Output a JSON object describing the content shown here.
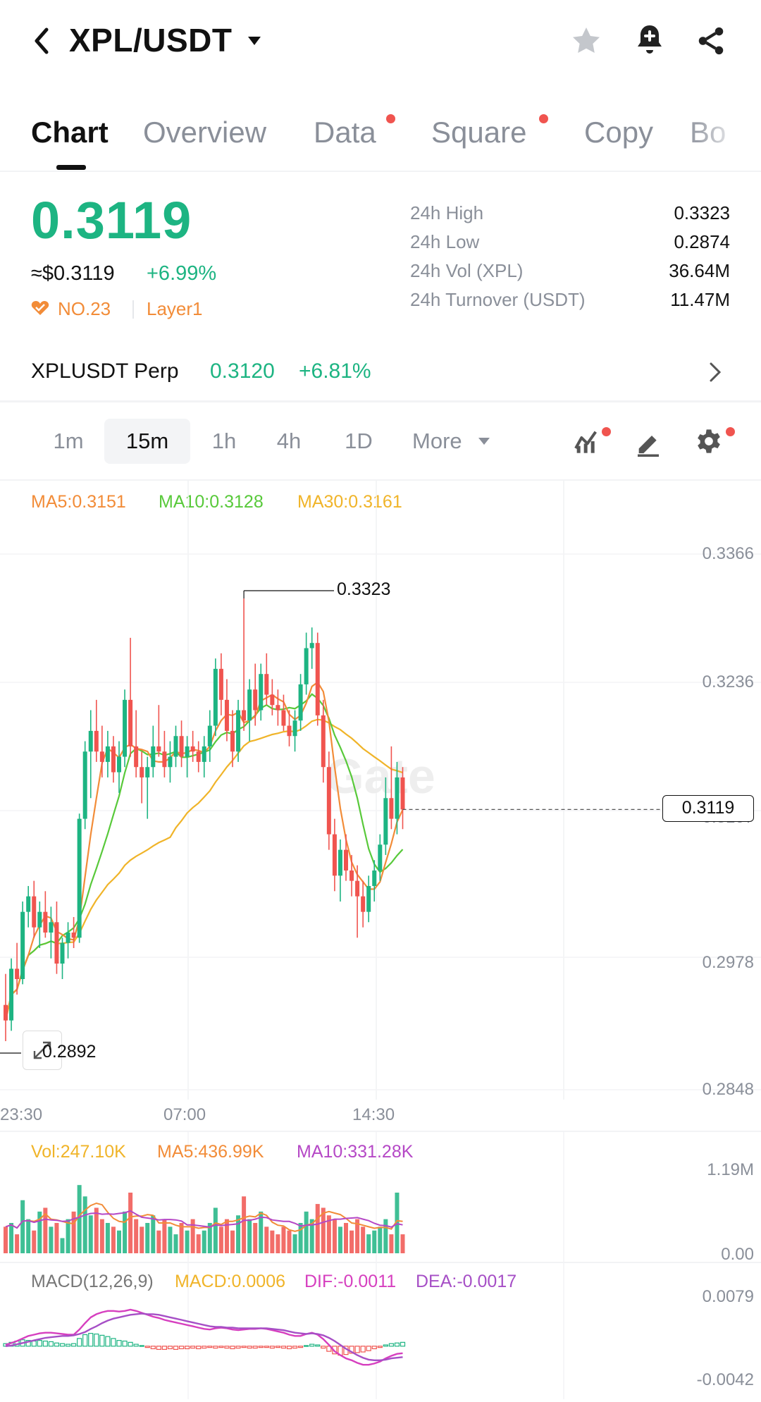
{
  "header": {
    "pair": "XPL/USDT",
    "icons": [
      "back-icon",
      "caret-down-icon",
      "star-icon",
      "bell-plus-icon",
      "share-icon"
    ]
  },
  "tabs": [
    {
      "label": "Chart",
      "active": true,
      "dot": false
    },
    {
      "label": "Overview",
      "active": false,
      "dot": false
    },
    {
      "label": "Data",
      "active": false,
      "dot": true
    },
    {
      "label": "Square",
      "active": false,
      "dot": true
    },
    {
      "label": "Copy",
      "active": false,
      "dot": false
    },
    {
      "label": "Bo",
      "active": false,
      "dot": false
    }
  ],
  "price": {
    "last": "0.3119",
    "usd": "≈$0.3119",
    "change": "+6.99%",
    "rank": "NO.23",
    "category": "Layer1"
  },
  "stats": [
    {
      "label": "24h High",
      "value": "0.3323"
    },
    {
      "label": "24h Low",
      "value": "0.2874"
    },
    {
      "label": "24h Vol (XPL)",
      "value": "36.64M"
    },
    {
      "label": "24h Turnover (USDT)",
      "value": "11.47M"
    }
  ],
  "perp": {
    "name": "XPLUSDT Perp",
    "price": "0.3120",
    "change": "+6.81%"
  },
  "intervals": {
    "items": [
      "1m",
      "15m",
      "1h",
      "4h",
      "1D"
    ],
    "selected": "15m",
    "more": "More"
  },
  "colors": {
    "up": "#1db482",
    "down": "#f0544f",
    "ma5": "#f28c38",
    "ma10": "#58c93a",
    "ma30": "#f0b429",
    "vol_ma10": "#b548c6",
    "macd_label": "#f0b429",
    "dif": "#d63fbf",
    "dea": "#a64fc6"
  },
  "main_chart": {
    "legend": {
      "ma5": "MA5:0.3151",
      "ma10": "MA10:0.3128",
      "ma30": "MA30:0.3161"
    },
    "y_ticks": [
      "0.3366",
      "0.3236",
      "0.3107",
      "0.2978",
      "0.2848"
    ],
    "x_ticks": [
      "23:30",
      "07:00",
      "14:30"
    ],
    "high_label": "0.3323",
    "low_label": "0.2892",
    "last_label": "0.3119",
    "watermark": "Gate"
  },
  "volume": {
    "legend": {
      "vol": "Vol:247.10K",
      "ma5": "MA5:436.99K",
      "ma10": "MA10:331.28K"
    },
    "y_ticks": [
      "1.19M",
      "0.00"
    ]
  },
  "macd": {
    "legend": {
      "name": "MACD(12,26,9)",
      "macd": "MACD:0.0006",
      "dif": "DIF:-0.0011",
      "dea": "DEA:-0.0017"
    },
    "y_ticks": [
      "0.0079",
      "-0.0042"
    ]
  },
  "chart_data": {
    "type": "candlestick",
    "interval": "15m",
    "ylim": [
      0.2848,
      0.3366
    ],
    "candles": [
      [
        0.293,
        0.296,
        0.2895,
        0.2915
      ],
      [
        0.2915,
        0.2975,
        0.2905,
        0.2965
      ],
      [
        0.2965,
        0.299,
        0.294,
        0.2955
      ],
      [
        0.2955,
        0.303,
        0.295,
        0.302
      ],
      [
        0.302,
        0.3045,
        0.3005,
        0.3035
      ],
      [
        0.3035,
        0.305,
        0.2995,
        0.3005
      ],
      [
        0.3005,
        0.303,
        0.2985,
        0.302
      ],
      [
        0.302,
        0.304,
        0.2995,
        0.3
      ],
      [
        0.3,
        0.3025,
        0.2975,
        0.301
      ],
      [
        0.301,
        0.303,
        0.296,
        0.297
      ],
      [
        0.297,
        0.2995,
        0.2955,
        0.299
      ],
      [
        0.299,
        0.301,
        0.2975,
        0.3
      ],
      [
        0.3,
        0.3015,
        0.2985,
        0.2995
      ],
      [
        0.2995,
        0.3115,
        0.299,
        0.311
      ],
      [
        0.311,
        0.3185,
        0.31,
        0.3175
      ],
      [
        0.3175,
        0.3215,
        0.313,
        0.3195
      ],
      [
        0.3195,
        0.3225,
        0.3165,
        0.3175
      ],
      [
        0.3175,
        0.32,
        0.315,
        0.3165
      ],
      [
        0.3165,
        0.3195,
        0.315,
        0.318
      ],
      [
        0.318,
        0.319,
        0.3145,
        0.3155
      ],
      [
        0.3155,
        0.3185,
        0.3135,
        0.317
      ],
      [
        0.317,
        0.3235,
        0.316,
        0.3225
      ],
      [
        0.3225,
        0.3285,
        0.317,
        0.318
      ],
      [
        0.318,
        0.3215,
        0.315,
        0.316
      ],
      [
        0.316,
        0.3175,
        0.3125,
        0.315
      ],
      [
        0.315,
        0.317,
        0.311,
        0.316
      ],
      [
        0.316,
        0.32,
        0.315,
        0.318
      ],
      [
        0.318,
        0.322,
        0.317,
        0.3175
      ],
      [
        0.3175,
        0.3195,
        0.315,
        0.316
      ],
      [
        0.316,
        0.3185,
        0.3145,
        0.317
      ],
      [
        0.317,
        0.32,
        0.316,
        0.319
      ],
      [
        0.319,
        0.3205,
        0.316,
        0.317
      ],
      [
        0.317,
        0.319,
        0.315,
        0.318
      ],
      [
        0.318,
        0.3195,
        0.3165,
        0.3175
      ],
      [
        0.3175,
        0.3185,
        0.3155,
        0.3165
      ],
      [
        0.3165,
        0.319,
        0.315,
        0.318
      ],
      [
        0.318,
        0.3215,
        0.3165,
        0.32
      ],
      [
        0.32,
        0.3265,
        0.319,
        0.3255
      ],
      [
        0.3255,
        0.327,
        0.321,
        0.3225
      ],
      [
        0.3225,
        0.3245,
        0.3185,
        0.3195
      ],
      [
        0.3195,
        0.3215,
        0.316,
        0.3175
      ],
      [
        0.3175,
        0.3225,
        0.3165,
        0.3215
      ],
      [
        0.3215,
        0.3323,
        0.3195,
        0.3205
      ],
      [
        0.3205,
        0.3245,
        0.3185,
        0.3235
      ],
      [
        0.3235,
        0.326,
        0.32,
        0.3215
      ],
      [
        0.3215,
        0.326,
        0.3205,
        0.325
      ],
      [
        0.325,
        0.327,
        0.322,
        0.323
      ],
      [
        0.323,
        0.3245,
        0.321,
        0.322
      ],
      [
        0.322,
        0.3235,
        0.32,
        0.3215
      ],
      [
        0.3215,
        0.323,
        0.3195,
        0.32
      ],
      [
        0.32,
        0.3215,
        0.318,
        0.319
      ],
      [
        0.319,
        0.3215,
        0.3175,
        0.3205
      ],
      [
        0.3205,
        0.325,
        0.3195,
        0.324
      ],
      [
        0.324,
        0.329,
        0.323,
        0.3275
      ],
      [
        0.3275,
        0.3295,
        0.3255,
        0.328
      ],
      [
        0.328,
        0.329,
        0.32,
        0.321
      ],
      [
        0.321,
        0.3225,
        0.3145,
        0.316
      ],
      [
        0.316,
        0.3175,
        0.308,
        0.3095
      ],
      [
        0.3095,
        0.311,
        0.304,
        0.3055
      ],
      [
        0.3055,
        0.309,
        0.303,
        0.308
      ],
      [
        0.308,
        0.3095,
        0.305,
        0.306
      ],
      [
        0.306,
        0.3075,
        0.3035,
        0.305
      ],
      [
        0.305,
        0.3065,
        0.2995,
        0.3035
      ],
      [
        0.3035,
        0.305,
        0.3005,
        0.302
      ],
      [
        0.302,
        0.3055,
        0.301,
        0.3045
      ],
      [
        0.3045,
        0.307,
        0.303,
        0.306
      ],
      [
        0.306,
        0.3095,
        0.305,
        0.3085
      ],
      [
        0.3085,
        0.315,
        0.3075,
        0.313
      ],
      [
        0.313,
        0.318,
        0.31,
        0.311
      ],
      [
        0.311,
        0.3165,
        0.3095,
        0.315
      ],
      [
        0.315,
        0.316,
        0.31,
        0.3119
      ]
    ],
    "volume_ylim": [
      0,
      1.19
    ],
    "volume_m": [
      0.35,
      0.4,
      0.25,
      0.7,
      0.45,
      0.3,
      0.55,
      0.6,
      0.35,
      0.4,
      0.2,
      0.45,
      0.55,
      0.9,
      0.75,
      0.5,
      0.6,
      0.45,
      0.4,
      0.35,
      0.3,
      0.55,
      0.8,
      0.45,
      0.35,
      0.4,
      0.5,
      0.3,
      0.45,
      0.35,
      0.25,
      0.4,
      0.3,
      0.45,
      0.25,
      0.3,
      0.4,
      0.6,
      0.35,
      0.45,
      0.3,
      0.5,
      0.75,
      0.45,
      0.4,
      0.55,
      0.35,
      0.3,
      0.25,
      0.35,
      0.3,
      0.25,
      0.4,
      0.55,
      0.45,
      0.65,
      0.6,
      0.5,
      0.45,
      0.35,
      0.4,
      0.3,
      0.45,
      0.35,
      0.25,
      0.3,
      0.35,
      0.45,
      0.25,
      0.8,
      0.25
    ],
    "macd_ylim": [
      -0.0042,
      0.0079
    ],
    "macd_hist": [
      0.0004,
      0.0006,
      0.0008,
      0.001,
      0.0009,
      0.0008,
      0.0009,
      0.0008,
      0.0007,
      0.0005,
      0.0004,
      0.0003,
      0.0004,
      0.0012,
      0.0018,
      0.002,
      0.0019,
      0.0017,
      0.0015,
      0.0012,
      0.0009,
      0.0008,
      0.0006,
      0.0003,
      0.0001,
      -0.0002,
      -0.0004,
      -0.0005,
      -0.0005,
      -0.0004,
      -0.0005,
      -0.0004,
      -0.0004,
      -0.0003,
      -0.0004,
      -0.0003,
      -0.0002,
      -0.0003,
      -0.0002,
      -0.0003,
      -0.0004,
      -0.0003,
      -0.0002,
      -0.0003,
      -0.0003,
      -0.0002,
      -0.0002,
      -0.0003,
      -0.0002,
      -0.0003,
      -0.0004,
      -0.0003,
      -0.0002,
      0.0001,
      0.0003,
      0.0002,
      -0.0003,
      -0.0008,
      -0.0012,
      -0.0014,
      -0.0013,
      -0.0011,
      -0.001,
      -0.0009,
      -0.0007,
      -0.0004,
      -0.0002,
      0.0002,
      0.0004,
      0.0005,
      0.0006
    ],
    "dif": [
      0.0002,
      0.0005,
      0.0008,
      0.0012,
      0.0016,
      0.0018,
      0.002,
      0.0021,
      0.0021,
      0.002,
      0.0019,
      0.0018,
      0.0018,
      0.0026,
      0.0036,
      0.0045,
      0.005,
      0.0053,
      0.0055,
      0.0055,
      0.0054,
      0.0055,
      0.0057,
      0.0055,
      0.0052,
      0.0049,
      0.0046,
      0.0044,
      0.0041,
      0.0039,
      0.0037,
      0.0035,
      0.0033,
      0.0031,
      0.0029,
      0.0027,
      0.0026,
      0.0028,
      0.0029,
      0.0028,
      0.0026,
      0.0025,
      0.0026,
      0.0027,
      0.0027,
      0.0028,
      0.0027,
      0.0025,
      0.0023,
      0.0021,
      0.0018,
      0.0016,
      0.0016,
      0.0019,
      0.0021,
      0.0018,
      0.0011,
      0.0002,
      -0.0008,
      -0.0014,
      -0.0019,
      -0.0022,
      -0.0026,
      -0.0029,
      -0.0029,
      -0.0027,
      -0.0024,
      -0.0019,
      -0.0015,
      -0.0012,
      -0.0011
    ],
    "dea": [
      0.0,
      0.0001,
      0.0003,
      0.0005,
      0.0007,
      0.0009,
      0.0011,
      0.0013,
      0.0014,
      0.0015,
      0.0016,
      0.0016,
      0.0017,
      0.0019,
      0.0022,
      0.0027,
      0.0031,
      0.0036,
      0.004,
      0.0043,
      0.0045,
      0.0047,
      0.0049,
      0.005,
      0.0051,
      0.005,
      0.005,
      0.0049,
      0.0047,
      0.0045,
      0.0043,
      0.0041,
      0.0039,
      0.0037,
      0.0035,
      0.0033,
      0.0031,
      0.003,
      0.003,
      0.0029,
      0.0029,
      0.0028,
      0.0028,
      0.0028,
      0.0028,
      0.0028,
      0.0028,
      0.0027,
      0.0026,
      0.0025,
      0.0023,
      0.0021,
      0.002,
      0.0019,
      0.002,
      0.0019,
      0.0017,
      0.0013,
      0.0008,
      0.0002,
      -0.0004,
      -0.0009,
      -0.0014,
      -0.0018,
      -0.0021,
      -0.0022,
      -0.0022,
      -0.0021,
      -0.0019,
      -0.0018,
      -0.0017
    ]
  }
}
